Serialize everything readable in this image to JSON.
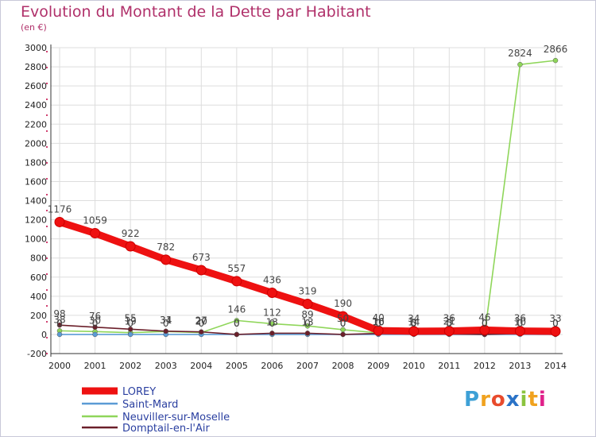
{
  "title": "Evolution du Montant de la Dette par Habitant",
  "subtitle": "(en €)",
  "brand": "Proxiti",
  "colors": {
    "title": "#b0306a",
    "grid": "#dddddd",
    "axis": "#333333",
    "brand_p": "#3da0d6",
    "brand_r": "#f0a21f",
    "brand_o": "#e84b2c",
    "brand_x": "#2a73c7",
    "brand_i": "#8bc43f",
    "brand_t": "#f0a21f",
    "brand_i2": "#e0218a"
  },
  "chart_data": {
    "type": "line",
    "x": [
      2000,
      2001,
      2002,
      2003,
      2004,
      2005,
      2006,
      2007,
      2008,
      2009,
      2010,
      2011,
      2012,
      2013,
      2014
    ],
    "ylim": [
      -200,
      3000
    ],
    "yticks": [
      -200,
      0,
      200,
      400,
      600,
      800,
      1000,
      1200,
      1400,
      1600,
      1800,
      2000,
      2200,
      2400,
      2600,
      2800,
      3000
    ],
    "grid": true,
    "legend_position": "bottom-left",
    "series": [
      {
        "name": "LOREY",
        "color": "#ee1111",
        "values": [
          1176,
          1059,
          922,
          782,
          673,
          557,
          436,
          319,
          190,
          40,
          34,
          36,
          46,
          36,
          33
        ],
        "labels": [
          "1176",
          "1059",
          "922",
          "782",
          "673",
          "557",
          "436",
          "319",
          "190",
          "40",
          "34",
          "36",
          "46",
          "36",
          "33"
        ]
      },
      {
        "name": "Saint-Mard",
        "color": "#5b9bd5",
        "values": [
          0,
          0,
          0,
          0,
          0,
          0,
          0,
          0,
          0,
          0,
          0,
          0,
          0,
          0,
          0
        ],
        "labels": [
          "0",
          "0",
          "0",
          "0",
          "0",
          "0",
          "0",
          "0",
          "0",
          "0",
          "0",
          "0",
          "0",
          "0",
          "0"
        ]
      },
      {
        "name": "Neuviller-sur-Moselle",
        "color": "#8fd65a",
        "values": [
          38,
          30,
          19,
          31,
          20,
          146,
          112,
          89,
          50,
          16,
          14,
          21,
          0,
          2824,
          2866
        ],
        "labels": [
          "38",
          "30",
          "19",
          "31",
          "20",
          "146",
          "112",
          "89",
          "50",
          "16",
          "14",
          "21",
          "0",
          "2824",
          "2866"
        ]
      },
      {
        "name": "Domptail-en-l'Air",
        "color": "#6b1f2a",
        "values": [
          98,
          76,
          55,
          34,
          27,
          0,
          13,
          13,
          0,
          10,
          5,
          5,
          0,
          10,
          0
        ],
        "labels": [
          "98",
          "76",
          "55",
          "34",
          "27",
          "0",
          "13",
          "13",
          "0",
          "10",
          "5",
          "5",
          "0",
          "10",
          "0"
        ]
      }
    ]
  }
}
